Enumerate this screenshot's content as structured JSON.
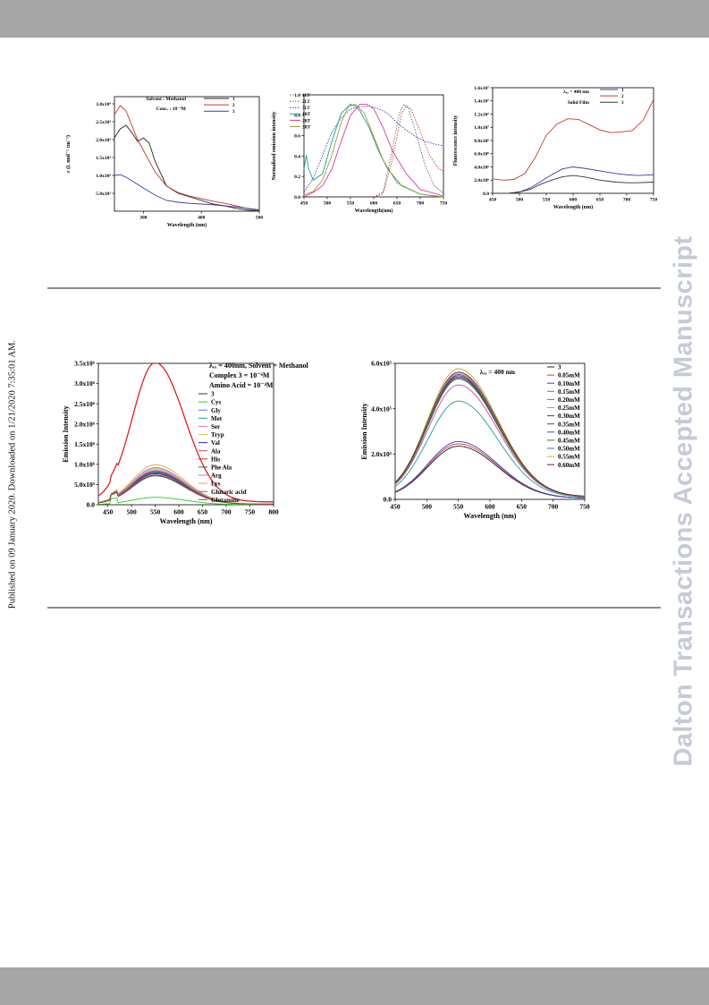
{
  "page": {
    "watermark": "Dalton Transactions Accepted Manuscript",
    "side_note": "Published on 09 January 2020. Downloaded on 1/21/2020 7:35:01 AM."
  },
  "chart_data": [
    {
      "type": "line",
      "xlabel": "Wavelength (nm)",
      "ylabel": "ε (L mol⁻¹ cm⁻¹)",
      "xlim": [
        250,
        500
      ],
      "ylim": [
        0,
        32000
      ],
      "x_ticks": [
        "300",
        "400",
        "500"
      ],
      "y_ticks": [
        "5.0x10³",
        "1.0x10⁴",
        "1.5x10⁴",
        "2.0x10⁴",
        "2.5x10⁴",
        "3.0x10⁴"
      ],
      "annotations": [
        "Solvent : Methanol",
        "Conc. : 10⁻⁴M"
      ],
      "legend_position": "top-right",
      "series": [
        {
          "name": "1",
          "color": "#222222",
          "x": [
            250,
            260,
            270,
            280,
            290,
            300,
            310,
            320,
            340,
            360,
            380,
            400,
            420,
            440,
            460,
            480,
            500
          ],
          "y": [
            20500,
            23000,
            24000,
            22000,
            19500,
            20500,
            19000,
            14000,
            7000,
            5000,
            4000,
            3000,
            2000,
            1500,
            800,
            300,
            0
          ]
        },
        {
          "name": "2",
          "color": "#c0392b",
          "x": [
            250,
            260,
            270,
            280,
            290,
            300,
            320,
            340,
            360,
            380,
            400,
            420,
            440,
            460,
            480,
            500
          ],
          "y": [
            27000,
            29500,
            28000,
            24000,
            20000,
            17000,
            11000,
            7000,
            5200,
            4200,
            3500,
            2800,
            2200,
            1500,
            700,
            200
          ]
        },
        {
          "name": "3",
          "color": "#3a3aa6",
          "x": [
            250,
            260,
            270,
            280,
            300,
            320,
            340,
            360,
            380,
            400,
            420,
            440,
            460,
            480,
            500
          ],
          "y": [
            10000,
            10200,
            9500,
            8500,
            6500,
            4500,
            3000,
            2500,
            2200,
            2000,
            1800,
            1500,
            1200,
            800,
            400
          ]
        }
      ]
    },
    {
      "type": "line",
      "xlabel": "Wavelength(nm)",
      "ylabel": "Normalized emission intensity",
      "xlim": [
        450,
        750
      ],
      "ylim": [
        0,
        1.1
      ],
      "x_ticks": [
        "450",
        "500",
        "550",
        "600",
        "650",
        "700",
        "750"
      ],
      "y_ticks": [
        "0.0",
        "0.2",
        "0.4",
        "0.6",
        "0.8",
        "1.0"
      ],
      "legend_position": "top-left",
      "series": [
        {
          "name": "1LT",
          "color": "#666666",
          "x": [
            600,
            620,
            640,
            655,
            665,
            675,
            690,
            710,
            730,
            750
          ],
          "y": [
            0.0,
            0.05,
            0.5,
            0.9,
            1.0,
            0.95,
            0.7,
            0.35,
            0.12,
            0.04
          ]
        },
        {
          "name": "2LT",
          "color": "#c0392b",
          "x": [
            600,
            620,
            640,
            660,
            670,
            680,
            700,
            720,
            740,
            750
          ],
          "y": [
            0.0,
            0.03,
            0.4,
            0.9,
            0.98,
            0.95,
            0.7,
            0.45,
            0.3,
            0.28
          ]
        },
        {
          "name": "3LT",
          "color": "#3a3aa6",
          "x": [
            450,
            470,
            490,
            510,
            530,
            550,
            570,
            590,
            610,
            630,
            650,
            670,
            690,
            710,
            730,
            750
          ],
          "y": [
            0.05,
            0.2,
            0.45,
            0.7,
            0.85,
            0.95,
            0.97,
            0.98,
            0.95,
            0.9,
            0.8,
            0.72,
            0.65,
            0.6,
            0.57,
            0.55
          ]
        },
        {
          "name": "1RT",
          "color": "#1f9e89",
          "x": [
            450,
            455,
            460,
            470,
            490,
            510,
            530,
            550,
            560,
            570,
            590,
            610,
            630,
            660,
            700,
            750
          ],
          "y": [
            0.3,
            0.45,
            0.3,
            0.18,
            0.25,
            0.6,
            0.9,
            1.0,
            0.98,
            0.93,
            0.75,
            0.5,
            0.3,
            0.12,
            0.03,
            0.0
          ]
        },
        {
          "name": "2RT",
          "color": "#d63aa8",
          "x": [
            450,
            470,
            490,
            510,
            530,
            550,
            570,
            585,
            600,
            620,
            640,
            670,
            700,
            750
          ],
          "y": [
            0.0,
            0.05,
            0.12,
            0.3,
            0.6,
            0.88,
            1.0,
            1.0,
            0.95,
            0.75,
            0.5,
            0.25,
            0.08,
            0.01
          ]
        },
        {
          "name": "3RT",
          "color": "#9aa13a",
          "x": [
            450,
            470,
            490,
            510,
            530,
            545,
            560,
            580,
            600,
            620,
            650,
            700,
            750
          ],
          "y": [
            0.02,
            0.06,
            0.18,
            0.45,
            0.8,
            0.97,
            1.0,
            0.9,
            0.65,
            0.4,
            0.15,
            0.03,
            0.0
          ]
        }
      ]
    },
    {
      "type": "line",
      "xlabel": "Wavelength (nm)",
      "ylabel": "Fluorescence intensity",
      "xlim": [
        450,
        750
      ],
      "ylim": [
        0,
        1.6
      ],
      "x_ticks": [
        "450",
        "500",
        "550",
        "600",
        "650",
        "700",
        "750"
      ],
      "y_ticks": [
        "0.0",
        "2.0x10⁶",
        "4.0x10⁶",
        "6.0x10⁶",
        "8.0x10⁶",
        "1.0x10⁷",
        "1.2x10⁷",
        "1.4x10⁷",
        "1.6x10⁷"
      ],
      "annotations": [
        "λₑₓ = 400 nm",
        "Solid Film"
      ],
      "legend_position": "top-right",
      "series": [
        {
          "name": "1",
          "color": "#3a3aa6",
          "x": [
            450,
            480,
            500,
            520,
            540,
            560,
            580,
            600,
            620,
            650,
            680,
            700,
            720,
            750
          ],
          "y": [
            0.0,
            0.0,
            0.02,
            0.08,
            0.18,
            0.28,
            0.37,
            0.4,
            0.38,
            0.34,
            0.3,
            0.28,
            0.27,
            0.28
          ]
        },
        {
          "name": "2",
          "color": "#c0392b",
          "x": [
            450,
            470,
            490,
            510,
            530,
            550,
            570,
            590,
            610,
            630,
            650,
            670,
            690,
            710,
            730,
            750
          ],
          "y": [
            0.22,
            0.2,
            0.21,
            0.3,
            0.55,
            0.88,
            1.05,
            1.13,
            1.12,
            1.04,
            0.96,
            0.92,
            0.93,
            0.95,
            1.1,
            1.42
          ]
        },
        {
          "name": "3",
          "color": "#333333",
          "x": [
            450,
            480,
            500,
            520,
            540,
            560,
            580,
            600,
            620,
            650,
            680,
            700,
            720,
            750
          ],
          "y": [
            0.0,
            0.0,
            0.02,
            0.06,
            0.14,
            0.2,
            0.25,
            0.27,
            0.25,
            0.2,
            0.17,
            0.16,
            0.16,
            0.17
          ]
        }
      ]
    },
    {
      "type": "line",
      "xlabel": "Wavelength (nm)",
      "ylabel": "Emission Intensity",
      "xlim": [
        430,
        800
      ],
      "ylim": [
        0,
        3.5
      ],
      "x_ticks": [
        "450",
        "500",
        "550",
        "600",
        "650",
        "700",
        "750",
        "800"
      ],
      "y_ticks": [
        "0.0",
        "5.0x10⁵",
        "1.0x10⁶",
        "1.5x10⁶",
        "2.0x10⁶",
        "2.5x10⁶",
        "3.0x10⁶",
        "3.5x10⁶"
      ],
      "annotations": [
        "λₑₓ = 400nm, Solvent = Methanol",
        "Complex 3 = 10⁻⁶M",
        "Amino Acid = 10⁻⁴M"
      ],
      "legend_position": "right",
      "series": [
        {
          "name": "3",
          "color": "#333333",
          "peak": 0.75
        },
        {
          "name": "Cys",
          "color": "#22cc22",
          "peak": 0.18
        },
        {
          "name": "Gly",
          "color": "#5577ee",
          "peak": 0.82
        },
        {
          "name": "Met",
          "color": "#1fa0a0",
          "peak": 0.8
        },
        {
          "name": "Ser",
          "color": "#d47ad4",
          "peak": 0.85
        },
        {
          "name": "Tryp",
          "color": "#c8c850",
          "peak": 0.88
        },
        {
          "name": "Val",
          "color": "#2c2c8a",
          "peak": 0.78
        },
        {
          "name": "Ala",
          "color": "#b84a4a",
          "peak": 0.82
        },
        {
          "name": "His",
          "color": "#e02020",
          "peak": 3.45
        },
        {
          "name": "Phe Ala",
          "color": "#555555",
          "peak": 0.7
        },
        {
          "name": "Arg",
          "color": "#8888cc",
          "peak": 0.9
        },
        {
          "name": "Lys",
          "color": "#e8a040",
          "peak": 0.97
        },
        {
          "name": "Glutaric acid",
          "color": "#7a5aa0",
          "peak": 0.76
        },
        {
          "name": "Glutamine",
          "color": "#884444",
          "peak": 0.72
        }
      ]
    },
    {
      "type": "line",
      "xlabel": "Wavelength (nm)",
      "ylabel": "Emission Intensity",
      "xlim": [
        450,
        750
      ],
      "ylim": [
        0,
        6.0
      ],
      "x_ticks": [
        "450",
        "500",
        "550",
        "600",
        "650",
        "700",
        "750"
      ],
      "y_ticks": [
        "0.0",
        "2.0x10⁵",
        "4.0x10⁵",
        "6.0x10⁵"
      ],
      "annotations": [
        "λₑₓ = 400 nm"
      ],
      "legend_position": "top-right",
      "series": [
        {
          "name": "3",
          "color": "#222222",
          "peak": 2.3
        },
        {
          "name": "0.05mM",
          "color": "#e03030",
          "peak": 2.4
        },
        {
          "name": "0.10mM",
          "color": "#2244cc",
          "peak": 2.5
        },
        {
          "name": "0.15mM",
          "color": "#1fa08a",
          "peak": 4.25
        },
        {
          "name": "0.20mM",
          "color": "#d040c0",
          "peak": 4.95
        },
        {
          "name": "0.25mM",
          "color": "#a8a830",
          "peak": 5.65
        },
        {
          "name": "0.30mM",
          "color": "#3a3a9a",
          "peak": 5.35
        },
        {
          "name": "0.35mM",
          "color": "#8a3030",
          "peak": 5.3
        },
        {
          "name": "0.40mM",
          "color": "#4a4a8a",
          "peak": 5.25
        },
        {
          "name": "0.45mM",
          "color": "#2a8a2a",
          "peak": 5.2
        },
        {
          "name": "0.50mM",
          "color": "#4466dd",
          "peak": 5.4
        },
        {
          "name": "0.55mM",
          "color": "#e8a040",
          "peak": 5.45
        },
        {
          "name": "0.60mM",
          "color": "#6a2020",
          "peak": 5.5
        }
      ]
    }
  ]
}
